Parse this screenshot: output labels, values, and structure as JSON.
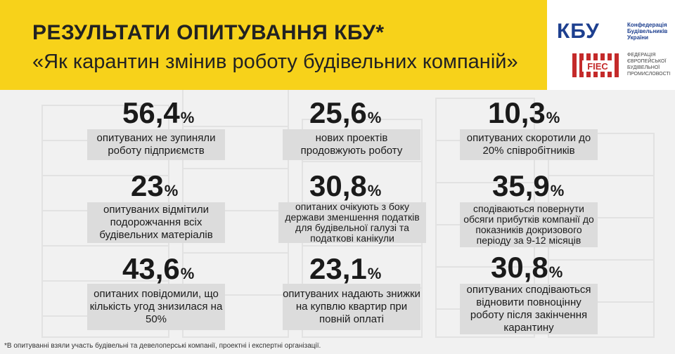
{
  "header": {
    "title": "РЕЗУЛЬТАТИ  ОПИТУВАННЯ КБУ*",
    "subtitle": "«Як карантин змінив роботу будівельних компаній»"
  },
  "logos": {
    "kbu_mark": "КБУ",
    "kbu_text": "Конфедерація Будівельників України",
    "fiec_mark": "FIEC",
    "fiec_text": "ФЕДЕРАЦІЯ ЄВРОПЕЙСЬКОЇ БУДІВЕЛЬНОЇ ПРОМИСЛОВОСТІ"
  },
  "stats": [
    {
      "value": "56,4",
      "unit": "%",
      "text": "опитуваних не зупиняли роботу підприємств"
    },
    {
      "value": "25,6",
      "unit": "%",
      "text": "нових проектів продовжують роботу"
    },
    {
      "value": "10,3",
      "unit": "%",
      "text": "опитуваних скоротили до 20% співробітників"
    },
    {
      "value": "23",
      "unit": "%",
      "text": "опитуваних відмітили подорожчання всіх будівельних матеріалів"
    },
    {
      "value": "30,8",
      "unit": "%",
      "text": "опитаних очікують з боку держави зменшення податків для будівельної галузі та податкові канікули"
    },
    {
      "value": "35,9",
      "unit": "%",
      "text": "сподіваються повернути обсяги прибутків компанії до показників докризового періоду за 9-12 місяців"
    },
    {
      "value": "43,6",
      "unit": "%",
      "text": "опитаних повідомили, що кількість угод знизилася на 50%"
    },
    {
      "value": "23,1",
      "unit": "%",
      "text": "опитуваних надають знижки на купвлю квартир при повній оплаті"
    },
    {
      "value": "30,8",
      "unit": "%",
      "text": "опитуваних сподіваються відновити повноцінну роботу після закінчення карантину"
    }
  ],
  "footnote": "*В опитуванні взяли участь будівельні та девелоперські компанії, проектні і експертні організації."
}
